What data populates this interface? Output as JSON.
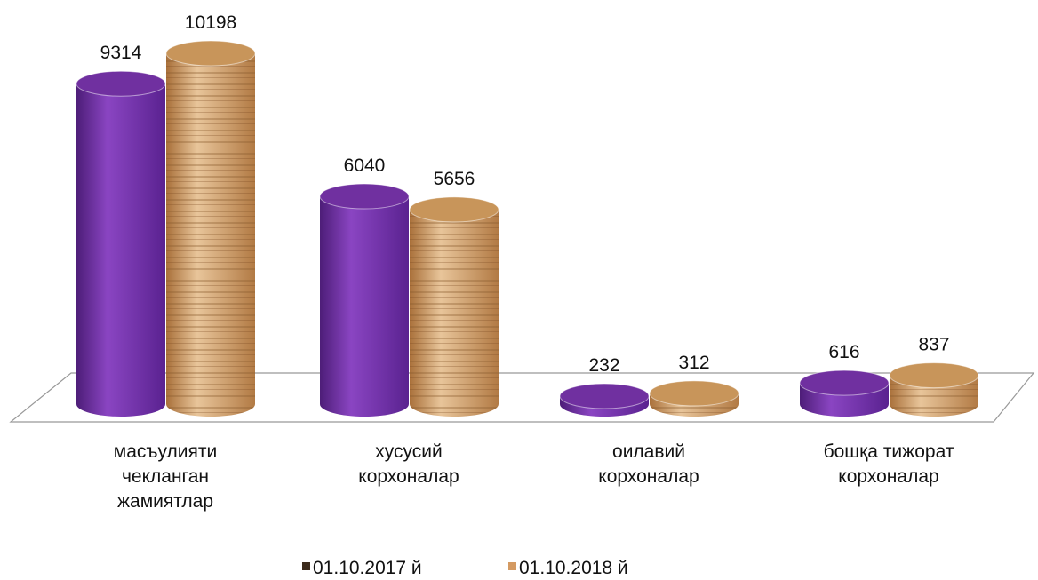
{
  "chart_data": {
    "type": "cylinder",
    "categories": [
      "масъулияти\nчекланган\nжамиятлар",
      "хусусий\nкорхоналар",
      "оилавий\nкорхоналар",
      "бошқа тижорат\nкорхоналар"
    ],
    "series": [
      {
        "name": "01.10.2017 й",
        "color": "#7030a0",
        "legend_color": "#3b2a1c",
        "values": [
          9314,
          6040,
          232,
          616
        ]
      },
      {
        "name": "01.10.2018 й",
        "color": "#c8955a",
        "legend_color": "#d49a62",
        "values": [
          10198,
          5656,
          312,
          837
        ]
      }
    ]
  }
}
